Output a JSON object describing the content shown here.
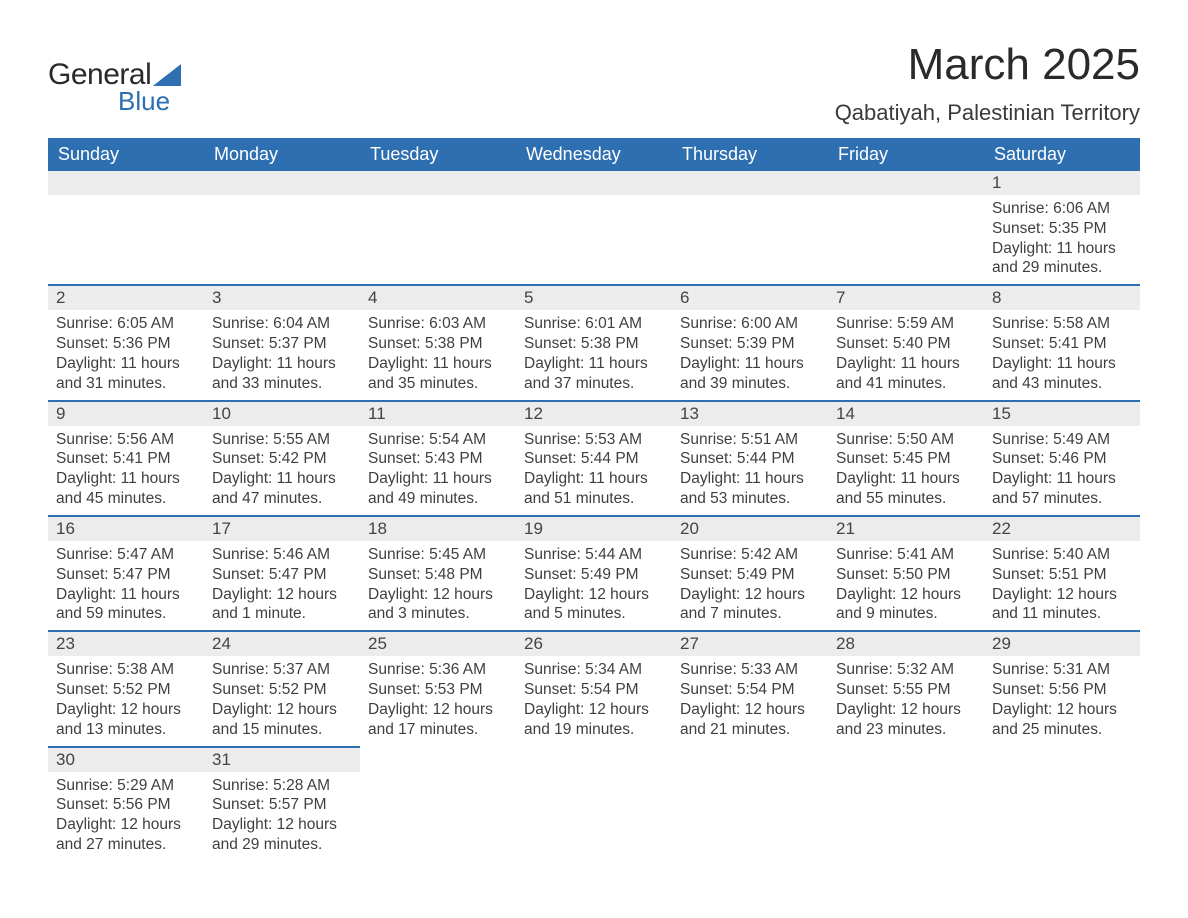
{
  "logo": {
    "general": "General",
    "blue": "Blue"
  },
  "title": "March 2025",
  "location": "Qabatiyah, Palestinian Territory",
  "colors": {
    "header_bg": "#2d6fb0",
    "header_text": "#ffffff",
    "daynum_bg": "#ececec",
    "border": "#2d6fb0",
    "text": "#3a3a3a"
  },
  "weekdays": [
    "Sunday",
    "Monday",
    "Tuesday",
    "Wednesday",
    "Thursday",
    "Friday",
    "Saturday"
  ],
  "weeks": [
    [
      null,
      null,
      null,
      null,
      null,
      null,
      {
        "n": "1",
        "sr": "6:06 AM",
        "ss": "5:35 PM",
        "dl": "11 hours and 29 minutes."
      }
    ],
    [
      {
        "n": "2",
        "sr": "6:05 AM",
        "ss": "5:36 PM",
        "dl": "11 hours and 31 minutes."
      },
      {
        "n": "3",
        "sr": "6:04 AM",
        "ss": "5:37 PM",
        "dl": "11 hours and 33 minutes."
      },
      {
        "n": "4",
        "sr": "6:03 AM",
        "ss": "5:38 PM",
        "dl": "11 hours and 35 minutes."
      },
      {
        "n": "5",
        "sr": "6:01 AM",
        "ss": "5:38 PM",
        "dl": "11 hours and 37 minutes."
      },
      {
        "n": "6",
        "sr": "6:00 AM",
        "ss": "5:39 PM",
        "dl": "11 hours and 39 minutes."
      },
      {
        "n": "7",
        "sr": "5:59 AM",
        "ss": "5:40 PM",
        "dl": "11 hours and 41 minutes."
      },
      {
        "n": "8",
        "sr": "5:58 AM",
        "ss": "5:41 PM",
        "dl": "11 hours and 43 minutes."
      }
    ],
    [
      {
        "n": "9",
        "sr": "5:56 AM",
        "ss": "5:41 PM",
        "dl": "11 hours and 45 minutes."
      },
      {
        "n": "10",
        "sr": "5:55 AM",
        "ss": "5:42 PM",
        "dl": "11 hours and 47 minutes."
      },
      {
        "n": "11",
        "sr": "5:54 AM",
        "ss": "5:43 PM",
        "dl": "11 hours and 49 minutes."
      },
      {
        "n": "12",
        "sr": "5:53 AM",
        "ss": "5:44 PM",
        "dl": "11 hours and 51 minutes."
      },
      {
        "n": "13",
        "sr": "5:51 AM",
        "ss": "5:44 PM",
        "dl": "11 hours and 53 minutes."
      },
      {
        "n": "14",
        "sr": "5:50 AM",
        "ss": "5:45 PM",
        "dl": "11 hours and 55 minutes."
      },
      {
        "n": "15",
        "sr": "5:49 AM",
        "ss": "5:46 PM",
        "dl": "11 hours and 57 minutes."
      }
    ],
    [
      {
        "n": "16",
        "sr": "5:47 AM",
        "ss": "5:47 PM",
        "dl": "11 hours and 59 minutes."
      },
      {
        "n": "17",
        "sr": "5:46 AM",
        "ss": "5:47 PM",
        "dl": "12 hours and 1 minute."
      },
      {
        "n": "18",
        "sr": "5:45 AM",
        "ss": "5:48 PM",
        "dl": "12 hours and 3 minutes."
      },
      {
        "n": "19",
        "sr": "5:44 AM",
        "ss": "5:49 PM",
        "dl": "12 hours and 5 minutes."
      },
      {
        "n": "20",
        "sr": "5:42 AM",
        "ss": "5:49 PM",
        "dl": "12 hours and 7 minutes."
      },
      {
        "n": "21",
        "sr": "5:41 AM",
        "ss": "5:50 PM",
        "dl": "12 hours and 9 minutes."
      },
      {
        "n": "22",
        "sr": "5:40 AM",
        "ss": "5:51 PM",
        "dl": "12 hours and 11 minutes."
      }
    ],
    [
      {
        "n": "23",
        "sr": "5:38 AM",
        "ss": "5:52 PM",
        "dl": "12 hours and 13 minutes."
      },
      {
        "n": "24",
        "sr": "5:37 AM",
        "ss": "5:52 PM",
        "dl": "12 hours and 15 minutes."
      },
      {
        "n": "25",
        "sr": "5:36 AM",
        "ss": "5:53 PM",
        "dl": "12 hours and 17 minutes."
      },
      {
        "n": "26",
        "sr": "5:34 AM",
        "ss": "5:54 PM",
        "dl": "12 hours and 19 minutes."
      },
      {
        "n": "27",
        "sr": "5:33 AM",
        "ss": "5:54 PM",
        "dl": "12 hours and 21 minutes."
      },
      {
        "n": "28",
        "sr": "5:32 AM",
        "ss": "5:55 PM",
        "dl": "12 hours and 23 minutes."
      },
      {
        "n": "29",
        "sr": "5:31 AM",
        "ss": "5:56 PM",
        "dl": "12 hours and 25 minutes."
      }
    ],
    [
      {
        "n": "30",
        "sr": "5:29 AM",
        "ss": "5:56 PM",
        "dl": "12 hours and 27 minutes."
      },
      {
        "n": "31",
        "sr": "5:28 AM",
        "ss": "5:57 PM",
        "dl": "12 hours and 29 minutes."
      },
      null,
      null,
      null,
      null,
      null
    ]
  ],
  "labels": {
    "sunrise": "Sunrise: ",
    "sunset": "Sunset: ",
    "daylight": "Daylight: "
  }
}
